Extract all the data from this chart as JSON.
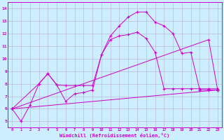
{
  "bg_color": "#cceeff",
  "grid_color": "#bbbbdd",
  "line_color": "#cc00cc",
  "xlabel": "Windchill (Refroidissement éolien,°C)",
  "xlim": [
    -0.5,
    23.5
  ],
  "ylim": [
    4.5,
    14.5
  ],
  "yticks": [
    5,
    6,
    7,
    8,
    9,
    10,
    11,
    12,
    13,
    14
  ],
  "xticks": [
    0,
    1,
    2,
    3,
    4,
    5,
    6,
    7,
    8,
    9,
    10,
    11,
    12,
    13,
    14,
    15,
    16,
    17,
    18,
    19,
    20,
    21,
    22,
    23
  ],
  "line1_x": [
    0,
    1,
    2,
    3,
    4,
    5,
    6,
    7,
    8,
    9,
    10,
    11,
    12,
    13,
    14,
    15,
    16,
    17,
    18,
    19,
    20,
    21,
    22,
    23
  ],
  "line1_y": [
    6.0,
    5.0,
    6.3,
    8.0,
    8.8,
    7.9,
    6.6,
    7.2,
    7.3,
    7.5,
    10.3,
    11.8,
    12.6,
    13.3,
    13.7,
    13.7,
    12.9,
    12.6,
    12.0,
    10.4,
    10.5,
    7.5,
    7.5,
    7.5
  ],
  "line2_x": [
    0,
    3,
    4,
    5,
    6,
    7,
    8,
    9,
    10,
    11,
    12,
    13,
    14,
    15,
    16,
    17,
    18,
    19,
    20,
    21,
    22,
    23
  ],
  "line2_y": [
    6.0,
    8.0,
    8.8,
    7.9,
    7.85,
    7.85,
    7.85,
    7.85,
    10.3,
    11.5,
    11.8,
    11.9,
    12.1,
    11.6,
    10.5,
    7.6,
    7.6,
    7.6,
    7.6,
    7.6,
    7.6,
    7.6
  ],
  "line3_x": [
    0,
    22,
    23
  ],
  "line3_y": [
    6.0,
    11.5,
    7.5
  ],
  "line4_x": [
    0,
    23
  ],
  "line4_y": [
    6.0,
    7.5
  ]
}
